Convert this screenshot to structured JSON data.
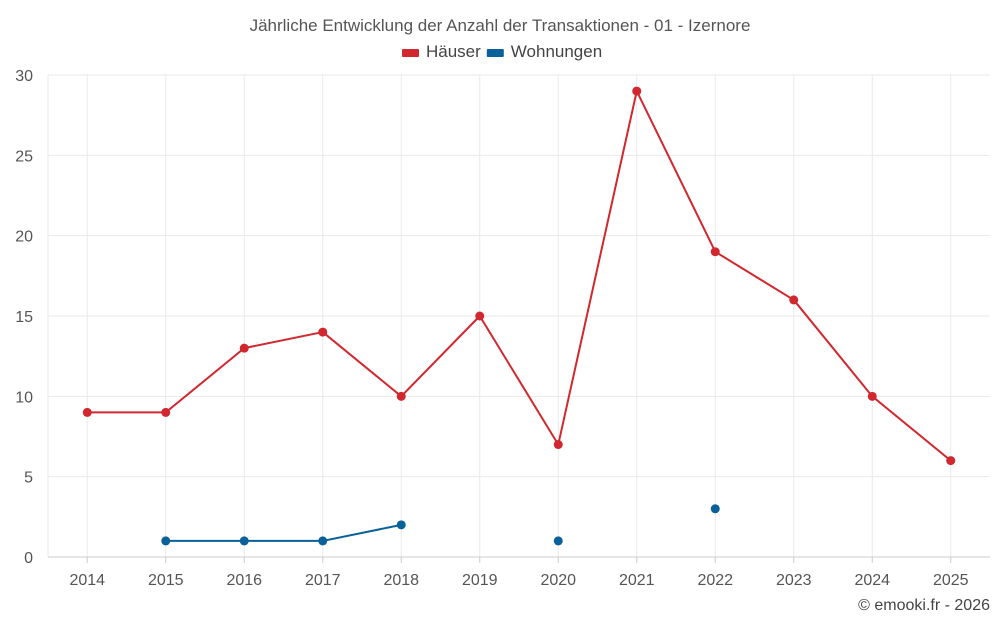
{
  "chart_data": {
    "type": "line",
    "title": "Jährliche Entwicklung der Anzahl der Transaktionen - 01 - Izernore",
    "xlabel": "",
    "ylabel": "",
    "categories": [
      "2014",
      "2015",
      "2016",
      "2017",
      "2018",
      "2019",
      "2020",
      "2021",
      "2022",
      "2023",
      "2024",
      "2025"
    ],
    "ylim": [
      0,
      30
    ],
    "yticks": [
      0,
      5,
      10,
      15,
      20,
      25,
      30
    ],
    "grid": true,
    "legend_position": "top-center",
    "series": [
      {
        "name": "Häuser",
        "color": "#d0282e",
        "values": [
          9,
          9,
          13,
          14,
          10,
          15,
          7,
          29,
          19,
          16,
          10,
          6
        ]
      },
      {
        "name": "Wohnungen",
        "color": "#0a6098",
        "values": [
          null,
          1,
          1,
          1,
          2,
          null,
          1,
          null,
          3,
          null,
          null,
          null
        ]
      }
    ]
  },
  "credit": "© emooki.fr - 2026"
}
